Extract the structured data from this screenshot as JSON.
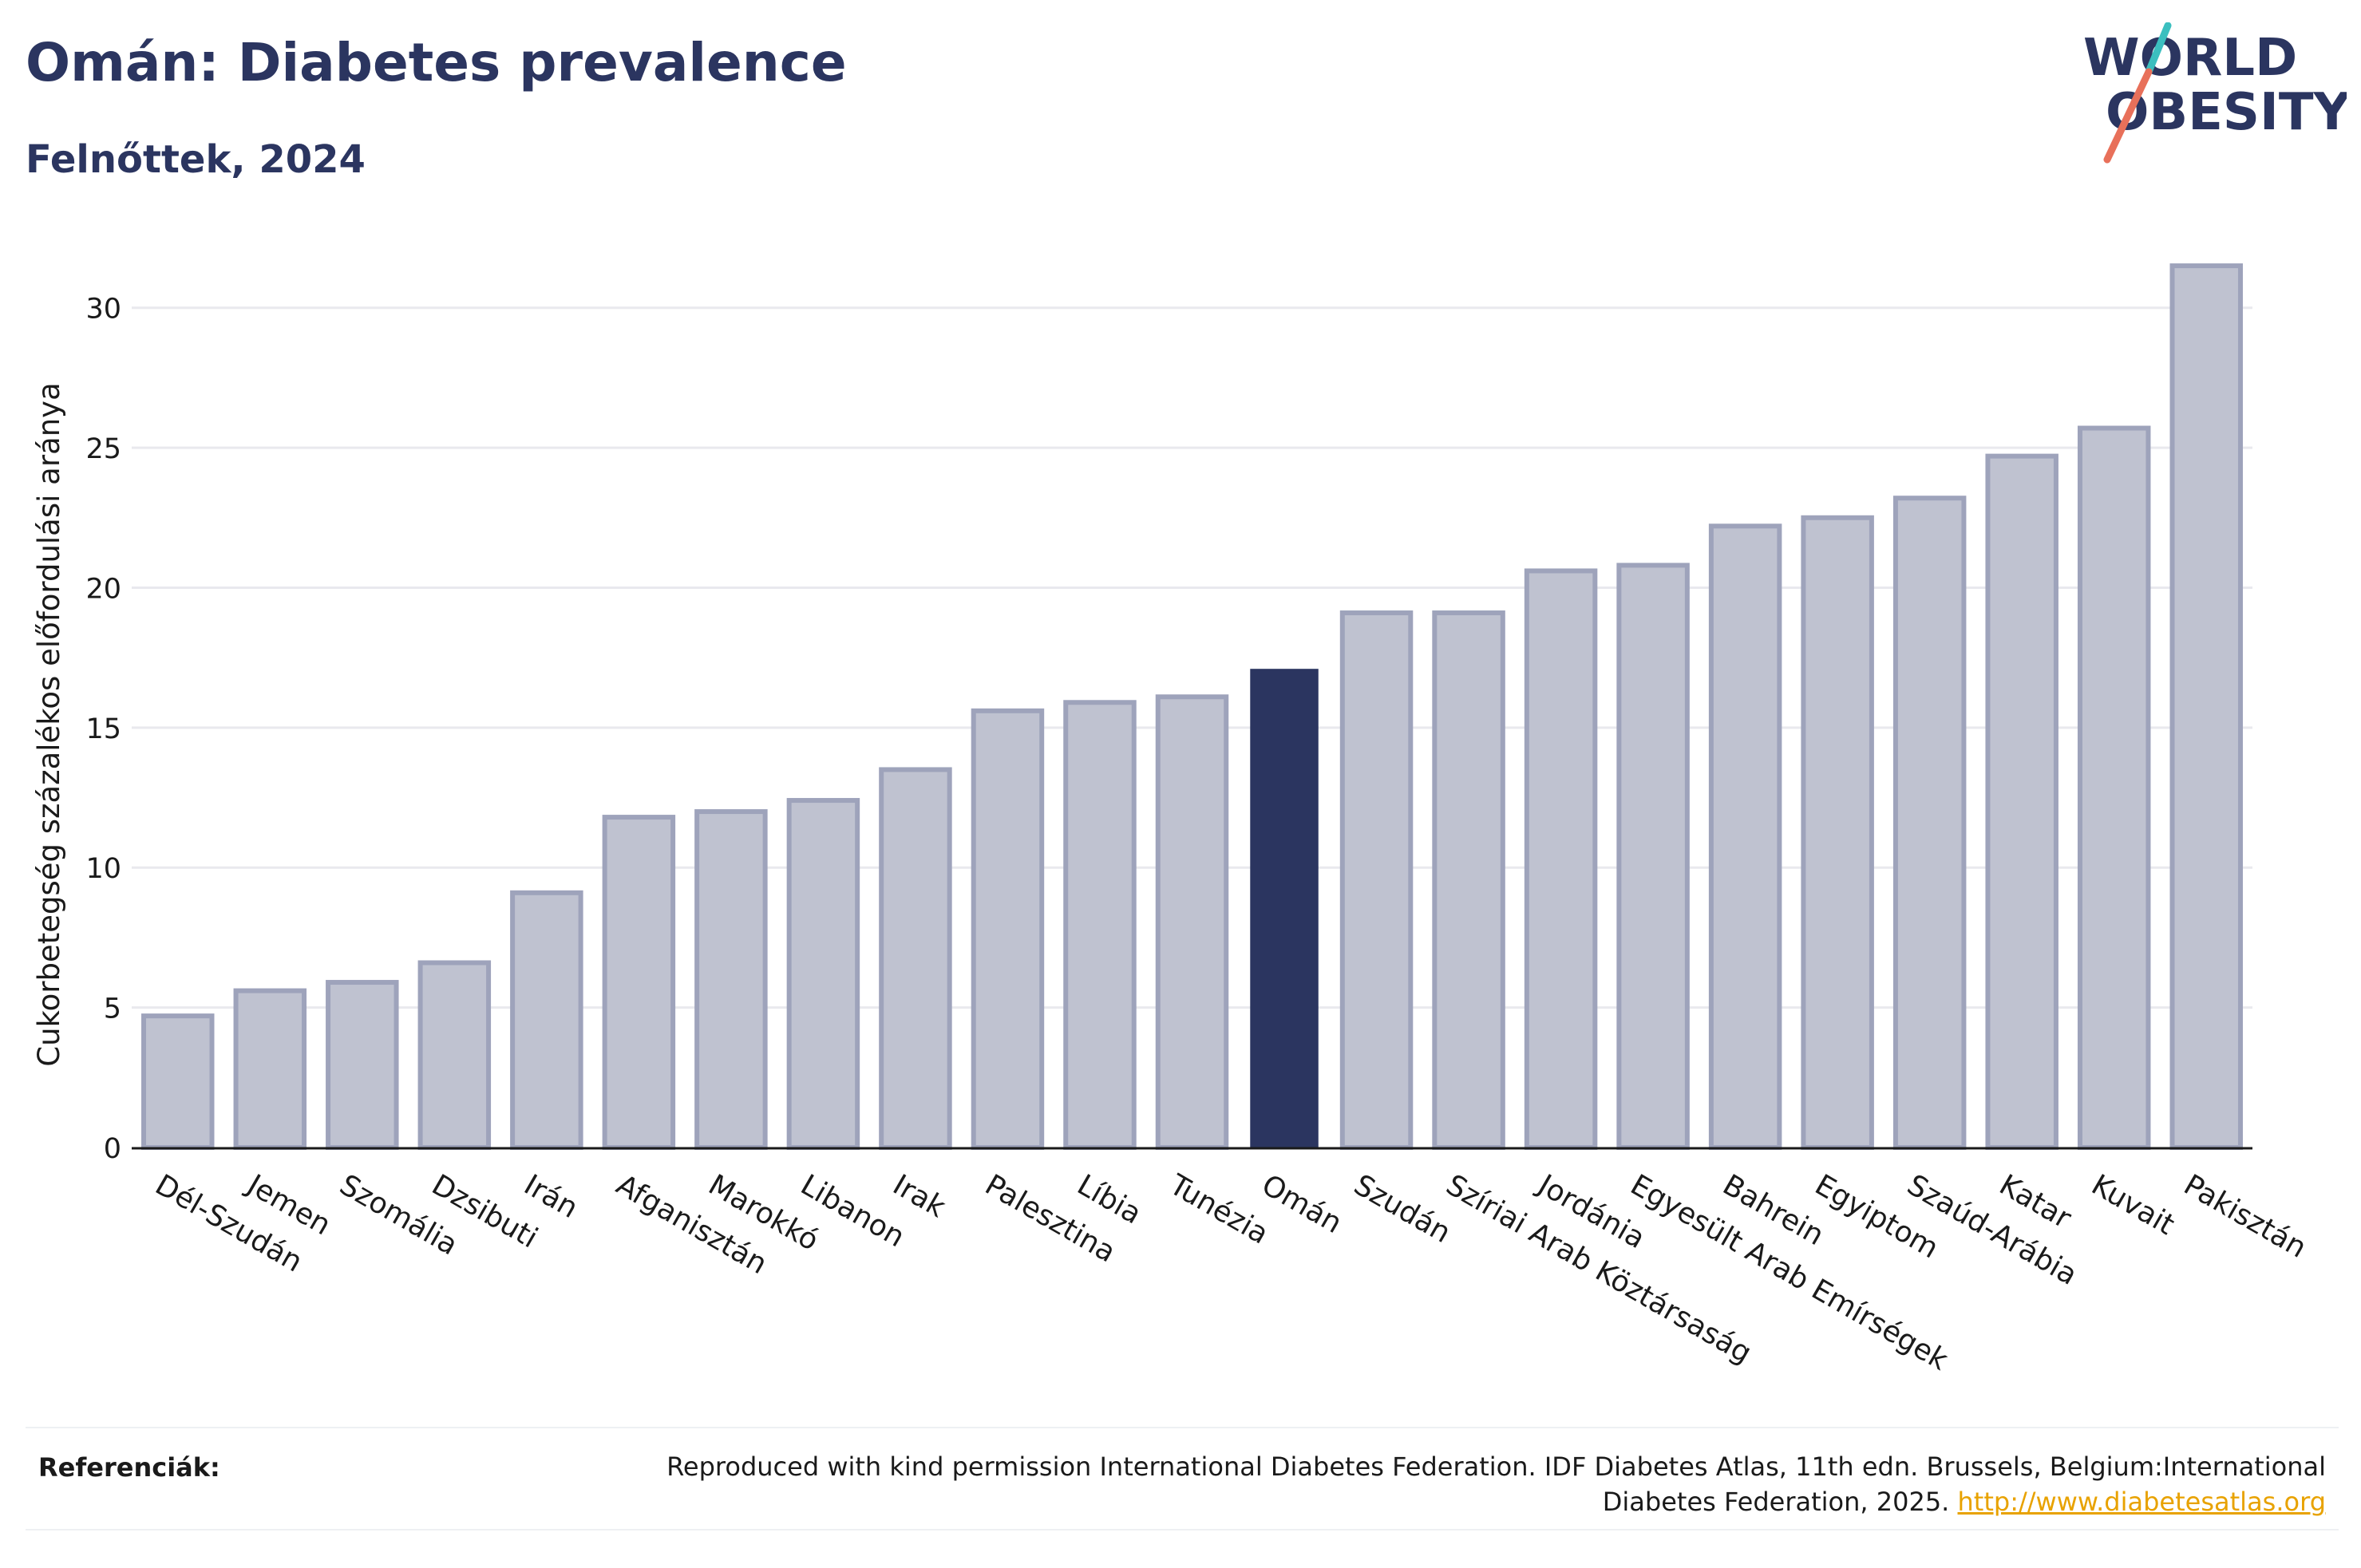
{
  "header": {
    "title": "Omán: Diabetes prevalence",
    "subtitle": "Felnőttek, 2024"
  },
  "logo": {
    "line1": "WORLD",
    "line2": "OBESITY",
    "colors": {
      "text": "#2b3560",
      "slash_top": "#3bbfbf",
      "slash_bottom": "#e8705a"
    }
  },
  "chart_data": {
    "type": "bar",
    "ylabel": "Cukorbetegség százalékos előfordulási aránya",
    "xlabel": "",
    "ylim": [
      0,
      32.5
    ],
    "yticks": [
      0,
      5,
      10,
      15,
      20,
      25,
      30
    ],
    "grid": true,
    "highlight": "Omán",
    "colors": {
      "bar": "#bfc2d0",
      "bar_edge": "#9ea3bb",
      "highlight": "#2b3560",
      "grid": "#e9e9ee"
    },
    "categories": [
      "Dél-Szudán",
      "Jemen",
      "Szomália",
      "Dzsibuti",
      "Irán",
      "Afganisztán",
      "Marokkó",
      "Libanon",
      "Irak",
      "Palesztina",
      "Líbia",
      "Tunézia",
      "Omán",
      "Szudán",
      "Szíriai Arab Köztársaság",
      "Jordánia",
      "Egyesült Arab Emírségek",
      "Bahrein",
      "Egyiptom",
      "Szaúd-Arábia",
      "Katar",
      "Kuvait",
      "Pakisztán"
    ],
    "values": [
      4.7,
      5.6,
      5.9,
      6.6,
      9.1,
      11.8,
      12.0,
      12.4,
      13.5,
      15.6,
      15.9,
      16.1,
      17.1,
      19.1,
      19.1,
      20.6,
      20.8,
      22.2,
      22.5,
      23.2,
      24.7,
      25.7,
      31.5
    ]
  },
  "footer": {
    "ref_label": "Referenciák:",
    "ref_text": "Reproduced with kind permission International Diabetes Federation. IDF Diabetes Atlas, 11th edn. Brussels, Belgium:International Diabetes Federation, 2025.",
    "ref_link": "http://www.diabetesatlas.org"
  }
}
